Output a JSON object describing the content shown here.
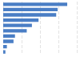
{
  "chart_data": {
    "type": "bar",
    "orientation": "horizontal",
    "categories": [
      null,
      null,
      null,
      null,
      null,
      null,
      null,
      null,
      null,
      null
    ],
    "values": [
      87,
      74,
      72,
      48,
      39,
      32,
      16,
      14,
      5,
      3
    ],
    "color": "#4a7ec5",
    "xlim": [
      0,
      100
    ],
    "xticks": [
      0,
      25,
      50,
      75,
      100
    ],
    "grid": true,
    "tick_labels": false
  }
}
